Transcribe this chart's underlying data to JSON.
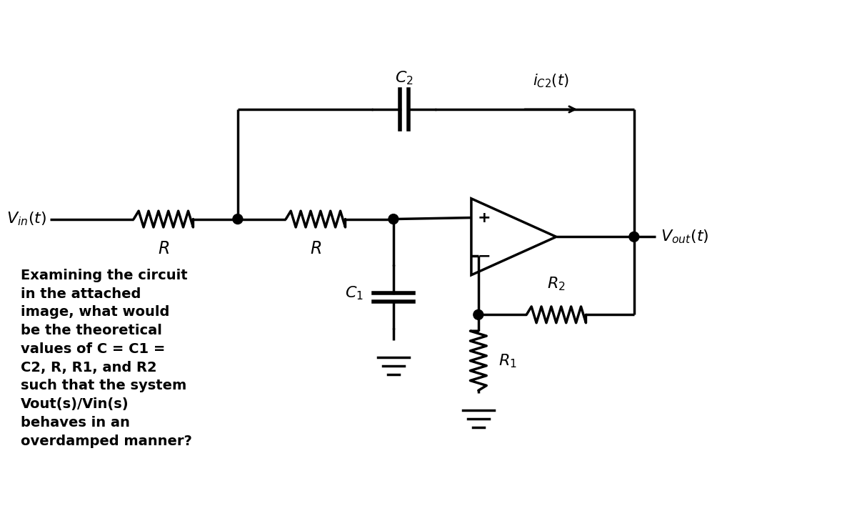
{
  "bg_color": "#ffffff",
  "line_color": "#000000",
  "text_color": "#000000",
  "question_text": "Examining the circuit\nin the attached\nimage, what would\nbe the theoretical\nvalues of C = C1 =\nC2, R, R1, and R2\nsuch that the system\nVout(s)/Vin(s)\nbehaves in an\noverdamped manner?"
}
